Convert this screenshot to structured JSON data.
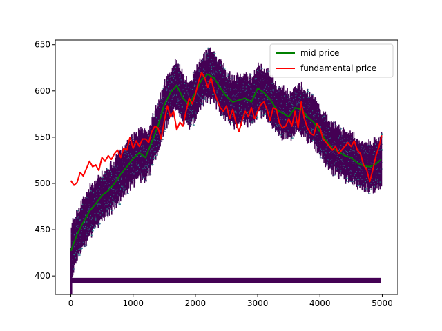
{
  "chart_data": {
    "type": "line",
    "title": "",
    "xlabel": "",
    "ylabel": "",
    "xlim": [
      -250,
      5250
    ],
    "ylim": [
      380,
      655
    ],
    "x_ticks": [
      0,
      1000,
      2000,
      3000,
      4000,
      5000
    ],
    "y_ticks": [
      400,
      450,
      500,
      550,
      600,
      650
    ],
    "grid": false,
    "legend": {
      "placement": "top-right",
      "entries": [
        "mid price",
        "fundamental price"
      ]
    },
    "series": [
      {
        "name": "mid price",
        "color": "#008000",
        "x": [
          0,
          100,
          200,
          300,
          400,
          500,
          600,
          700,
          800,
          900,
          1000,
          1100,
          1200,
          1300,
          1400,
          1500,
          1600,
          1700,
          1800,
          1900,
          2000,
          2100,
          2200,
          2300,
          2400,
          2500,
          2600,
          2700,
          2800,
          2900,
          3000,
          3100,
          3200,
          3300,
          3400,
          3500,
          3600,
          3700,
          3800,
          3900,
          4000,
          4100,
          4200,
          4300,
          4400,
          4500,
          4600,
          4700,
          4800,
          4900,
          4980
        ],
        "y": [
          427,
          445,
          458,
          470,
          478,
          487,
          492,
          500,
          510,
          518,
          527,
          533,
          528,
          545,
          562,
          585,
          598,
          606,
          592,
          585,
          598,
          612,
          618,
          614,
          603,
          594,
          588,
          590,
          592,
          588,
          603,
          598,
          591,
          580,
          576,
          572,
          582,
          580,
          572,
          566,
          556,
          546,
          538,
          534,
          530,
          528,
          522,
          519,
          518,
          521,
          526
        ]
      },
      {
        "name": "fundamental price",
        "color": "#ff0000",
        "x": [
          0,
          50,
          100,
          150,
          200,
          250,
          300,
          350,
          400,
          450,
          500,
          550,
          600,
          650,
          700,
          750,
          800,
          850,
          900,
          950,
          1000,
          1050,
          1100,
          1150,
          1200,
          1250,
          1300,
          1350,
          1400,
          1450,
          1500,
          1550,
          1600,
          1650,
          1700,
          1750,
          1800,
          1850,
          1900,
          1950,
          2000,
          2050,
          2100,
          2150,
          2200,
          2250,
          2300,
          2350,
          2400,
          2450,
          2500,
          2550,
          2600,
          2650,
          2700,
          2750,
          2800,
          2850,
          2900,
          2950,
          3000,
          3050,
          3100,
          3150,
          3200,
          3250,
          3300,
          3350,
          3400,
          3450,
          3500,
          3550,
          3600,
          3650,
          3700,
          3750,
          3800,
          3850,
          3900,
          3950,
          4000,
          4050,
          4100,
          4150,
          4200,
          4250,
          4300,
          4350,
          4400,
          4450,
          4500,
          4550,
          4600,
          4650,
          4700,
          4750,
          4800,
          4850,
          4900,
          4950,
          4990
        ],
        "y": [
          503,
          498,
          501,
          512,
          508,
          516,
          524,
          518,
          520,
          514,
          528,
          524,
          530,
          526,
          532,
          536,
          528,
          538,
          536,
          550,
          538,
          546,
          540,
          548,
          548,
          544,
          556,
          562,
          560,
          548,
          567,
          584,
          572,
          578,
          558,
          566,
          562,
          578,
          592,
          586,
          596,
          610,
          620,
          614,
          604,
          614,
          600,
          590,
          582,
          578,
          584,
          570,
          580,
          566,
          556,
          568,
          578,
          572,
          582,
          570,
          578,
          585,
          588,
          580,
          568,
          582,
          580,
          565,
          560,
          562,
          570,
          562,
          578,
          560,
          588,
          570,
          560,
          554,
          552,
          565,
          560,
          548,
          544,
          540,
          536,
          540,
          532,
          536,
          540,
          544,
          540,
          546,
          536,
          532,
          520,
          515,
          502,
          515,
          530,
          540,
          552
        ]
      }
    ],
    "order_book_band": {
      "description_color": "#440154",
      "bottom_bar_y": [
        392,
        398
      ],
      "bottom_bar_x": [
        0,
        4980
      ]
    }
  }
}
